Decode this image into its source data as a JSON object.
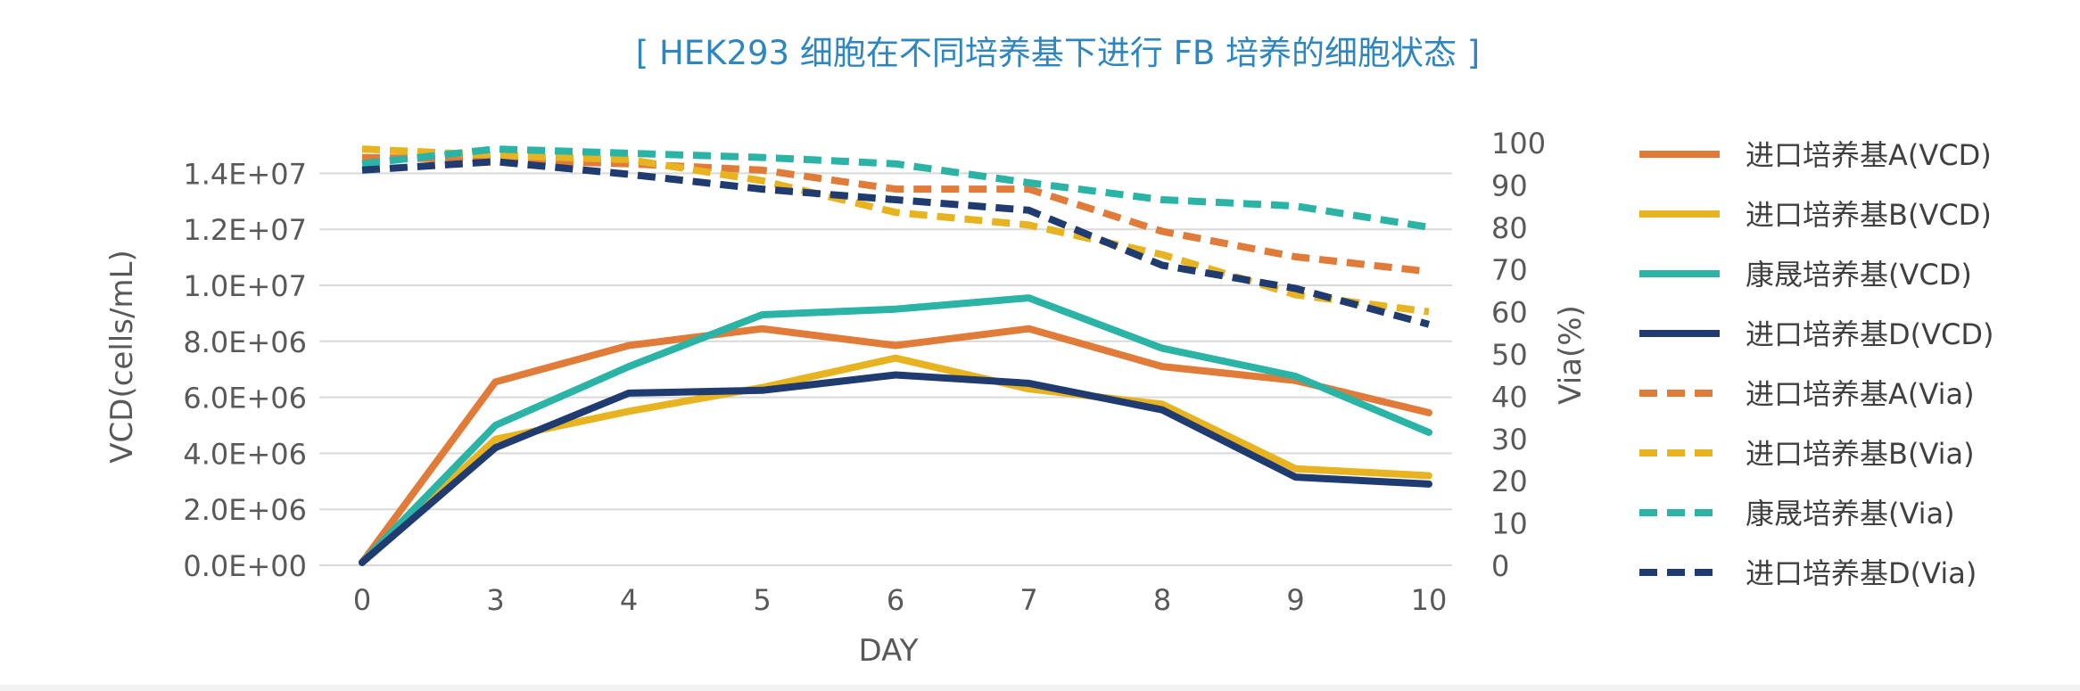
{
  "chart_data": {
    "type": "line",
    "title": "[ HEK293 细胞在不同培养基下进行 FB 培养的细胞状态 ]",
    "xlabel": "DAY",
    "ylabel_left": "VCD(cells/mL)",
    "ylabel_right": "Via(%)",
    "categories": [
      "0",
      "3",
      "4",
      "5",
      "6",
      "7",
      "8",
      "9",
      "10"
    ],
    "ylim_left": [
      0,
      15000000
    ],
    "ylim_right": [
      0,
      100
    ],
    "left_ticks": [
      {
        "value": 0,
        "label": "0.0E+00"
      },
      {
        "value": 2000000,
        "label": "2.0E+06"
      },
      {
        "value": 4000000,
        "label": "4.0E+06"
      },
      {
        "value": 6000000,
        "label": "6.0E+06"
      },
      {
        "value": 8000000,
        "label": "8.0E+06"
      },
      {
        "value": 10000000,
        "label": "1.0E+07"
      },
      {
        "value": 12000000,
        "label": "1.2E+07"
      },
      {
        "value": 14000000,
        "label": "1.4E+07"
      }
    ],
    "right_ticks": [
      "0",
      "10",
      "20",
      "30",
      "40",
      "50",
      "60",
      "70",
      "80",
      "90",
      "100"
    ],
    "series": [
      {
        "name": "进口培养基A(VCD)",
        "axis": "left",
        "style": "solid",
        "color": "#E07B39",
        "values": [
          100000,
          6550000,
          7850000,
          8450000,
          7850000,
          8450000,
          7100000,
          6600000,
          5450000
        ]
      },
      {
        "name": "进口培养基B(VCD)",
        "axis": "left",
        "style": "solid",
        "color": "#E8B320",
        "values": [
          100000,
          4500000,
          5500000,
          6350000,
          7400000,
          6300000,
          5750000,
          3450000,
          3200000
        ]
      },
      {
        "name": "康晟培养基(VCD)",
        "axis": "left",
        "style": "solid",
        "color": "#2BB3A6",
        "values": [
          100000,
          5000000,
          7100000,
          8950000,
          9150000,
          9550000,
          7750000,
          6750000,
          4750000
        ]
      },
      {
        "name": "进口培养基D(VCD)",
        "axis": "left",
        "style": "solid",
        "color": "#1F3B6F",
        "values": [
          100000,
          4200000,
          6150000,
          6250000,
          6800000,
          6500000,
          5550000,
          3150000,
          2900000
        ]
      },
      {
        "name": "进口培养基A(Via)",
        "axis": "right",
        "style": "dashed",
        "color": "#E07B39",
        "values": [
          96.5,
          96,
          95,
          93.5,
          89,
          89,
          79,
          73,
          69.5
        ]
      },
      {
        "name": "进口培养基B(Via)",
        "axis": "right",
        "style": "dashed",
        "color": "#E8B320",
        "values": [
          98.5,
          97,
          96,
          91,
          83.5,
          80.5,
          73.5,
          64,
          60
        ]
      },
      {
        "name": "康晟培养基(Via)",
        "axis": "right",
        "style": "dashed",
        "color": "#2BB3A6",
        "values": [
          95,
          98.5,
          97.5,
          96.5,
          95,
          90.5,
          86.5,
          85,
          80
        ]
      },
      {
        "name": "进口培养基D(Via)",
        "axis": "right",
        "style": "dashed",
        "color": "#1F3B6F",
        "values": [
          93.5,
          95.5,
          92.5,
          89,
          86.5,
          84,
          71,
          65.5,
          57
        ]
      }
    ],
    "legend_position": "right",
    "grid": true,
    "colors": {
      "title": "#2E86C1",
      "axis_text": "#595959",
      "grid": "#d9d9d9"
    }
  }
}
